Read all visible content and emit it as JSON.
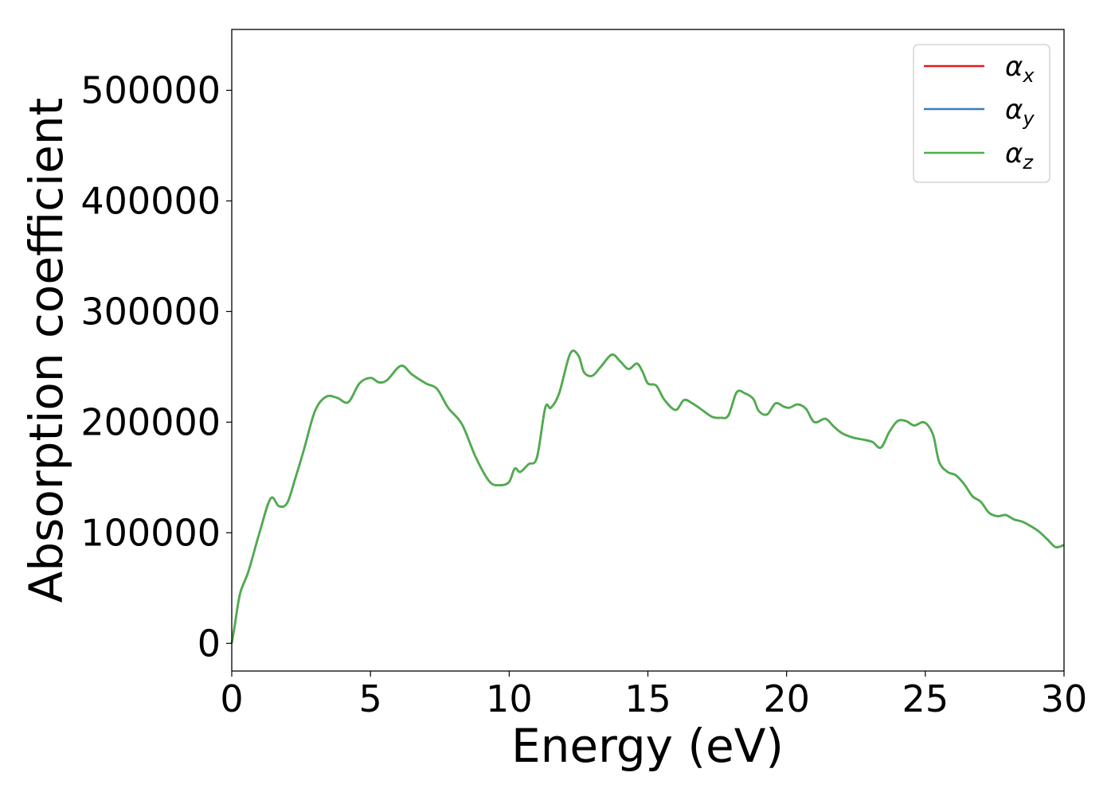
{
  "chart_data": {
    "type": "line",
    "xlabel": "Energy (eV)",
    "ylabel": "Absorption coefficient",
    "xlim": [
      0,
      30
    ],
    "ylim": [
      -25000,
      555000
    ],
    "xticks": [
      0,
      5,
      10,
      15,
      20,
      25,
      30
    ],
    "xtick_labels": [
      "0",
      "5",
      "10",
      "15",
      "20",
      "25",
      "30"
    ],
    "yticks": [
      0,
      100000,
      200000,
      300000,
      400000,
      500000
    ],
    "ytick_labels": [
      "0",
      "100000",
      "200000",
      "300000",
      "400000",
      "500000"
    ],
    "grid": false,
    "legend_position": "top-right",
    "x": [
      0,
      0.1,
      0.3,
      0.6,
      1.0,
      1.4,
      1.7,
      2.0,
      2.3,
      2.6,
      3.0,
      3.4,
      3.8,
      4.2,
      4.6,
      5.0,
      5.3,
      5.6,
      6.1,
      6.5,
      7.0,
      7.4,
      7.8,
      8.3,
      8.8,
      9.3,
      9.7,
      10.0,
      10.2,
      10.4,
      10.7,
      11.0,
      11.3,
      11.5,
      11.8,
      12.2,
      12.5,
      12.7,
      13.0,
      13.3,
      13.7,
      14.0,
      14.3,
      14.6,
      14.8,
      15.0,
      15.3,
      15.6,
      16.0,
      16.3,
      16.6,
      16.9,
      17.3,
      17.6,
      17.9,
      18.2,
      18.5,
      18.8,
      19.0,
      19.3,
      19.6,
      19.9,
      20.1,
      20.4,
      20.7,
      21.0,
      21.4,
      21.7,
      22.0,
      22.4,
      22.8,
      23.1,
      23.4,
      23.7,
      24.0,
      24.3,
      24.6,
      24.9,
      25.1,
      25.3,
      25.5,
      25.8,
      26.1,
      26.4,
      26.7,
      27.0,
      27.3,
      27.6,
      27.9,
      28.2,
      28.5,
      28.8,
      29.1,
      29.4,
      29.7,
      30.0
    ],
    "series": [
      {
        "name": "α_x",
        "label_base": "α",
        "label_sub": "x",
        "color": "#e41a1c",
        "values": [
          0,
          15000,
          45000,
          65000,
          100000,
          131000,
          124000,
          127000,
          150000,
          175000,
          210000,
          223000,
          222000,
          218000,
          235000,
          240000,
          236000,
          238000,
          251000,
          243000,
          235000,
          230000,
          213000,
          198000,
          168000,
          146000,
          143000,
          146000,
          158000,
          155000,
          162000,
          168000,
          213000,
          213000,
          226000,
          262000,
          260000,
          245000,
          242000,
          250000,
          261000,
          255000,
          248000,
          253000,
          246000,
          235000,
          233000,
          220000,
          211000,
          220000,
          217000,
          212000,
          205000,
          204000,
          206000,
          227000,
          226000,
          221000,
          210000,
          207000,
          217000,
          214000,
          213000,
          216000,
          212000,
          200000,
          203000,
          196000,
          190000,
          186000,
          184000,
          182000,
          177000,
          191000,
          201000,
          201000,
          197000,
          200000,
          197000,
          187000,
          164000,
          155000,
          152000,
          144000,
          133000,
          128000,
          118000,
          115000,
          116000,
          112000,
          110000,
          106000,
          101000,
          94000,
          87000,
          89000
        ]
      },
      {
        "name": "α_y",
        "label_base": "α",
        "label_sub": "y",
        "color": "#377eb8",
        "values": [
          0,
          15000,
          45000,
          65000,
          100000,
          131000,
          124000,
          127000,
          150000,
          175000,
          210000,
          223000,
          222000,
          218000,
          235000,
          240000,
          236000,
          238000,
          251000,
          243000,
          235000,
          230000,
          213000,
          198000,
          168000,
          146000,
          143000,
          146000,
          158000,
          155000,
          162000,
          168000,
          213000,
          213000,
          226000,
          262000,
          260000,
          245000,
          242000,
          250000,
          261000,
          255000,
          248000,
          253000,
          246000,
          235000,
          233000,
          220000,
          211000,
          220000,
          217000,
          212000,
          205000,
          204000,
          206000,
          227000,
          226000,
          221000,
          210000,
          207000,
          217000,
          214000,
          213000,
          216000,
          212000,
          200000,
          203000,
          196000,
          190000,
          186000,
          184000,
          182000,
          177000,
          191000,
          201000,
          201000,
          197000,
          200000,
          197000,
          187000,
          164000,
          155000,
          152000,
          144000,
          133000,
          128000,
          118000,
          115000,
          116000,
          112000,
          110000,
          106000,
          101000,
          94000,
          87000,
          89000
        ]
      },
      {
        "name": "α_z",
        "label_base": "α",
        "label_sub": "z",
        "color": "#4daf4a",
        "values": [
          0,
          15000,
          45000,
          65000,
          100000,
          131000,
          124000,
          127000,
          150000,
          175000,
          210000,
          223000,
          222000,
          218000,
          235000,
          240000,
          236000,
          238000,
          251000,
          243000,
          235000,
          230000,
          213000,
          198000,
          168000,
          146000,
          143000,
          146000,
          158000,
          155000,
          162000,
          168000,
          213000,
          213000,
          226000,
          262000,
          260000,
          245000,
          242000,
          250000,
          261000,
          255000,
          248000,
          253000,
          246000,
          235000,
          233000,
          220000,
          211000,
          220000,
          217000,
          212000,
          205000,
          204000,
          206000,
          227000,
          226000,
          221000,
          210000,
          207000,
          217000,
          214000,
          213000,
          216000,
          212000,
          200000,
          203000,
          196000,
          190000,
          186000,
          184000,
          182000,
          177000,
          191000,
          201000,
          201000,
          197000,
          200000,
          197000,
          187000,
          164000,
          155000,
          152000,
          144000,
          133000,
          128000,
          118000,
          115000,
          116000,
          112000,
          110000,
          106000,
          101000,
          94000,
          87000,
          89000
        ]
      }
    ]
  }
}
